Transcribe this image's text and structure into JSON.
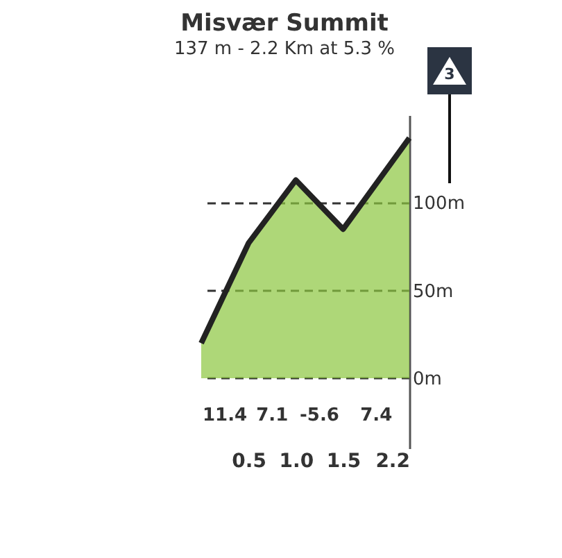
{
  "chart_data": {
    "type": "area",
    "title": "Misvær Summit",
    "subtitle": "137 m - 2.2 Km at 5.3 %",
    "x": [
      0,
      0.5,
      1.0,
      1.5,
      2.2
    ],
    "series": [
      {
        "color": "#8cc63f",
        "values": [
          20,
          77,
          113,
          85,
          137
        ]
      }
    ],
    "xlim": [
      0,
      2.2
    ],
    "xticks": [
      {
        "value": 0.5,
        "label": "0.5"
      },
      {
        "value": 1.0,
        "label": "1.0"
      },
      {
        "value": 1.5,
        "label": "1.5"
      },
      {
        "value": 2.2,
        "label": "2.2"
      }
    ],
    "ylim": [
      -40,
      150
    ],
    "yticks": [
      {
        "value": 0,
        "label": "0m"
      },
      {
        "value": 50,
        "label": "50m"
      },
      {
        "value": 100,
        "label": "100m"
      }
    ],
    "grid": true,
    "annotations": [
      "3",
      "11.4",
      "7.1",
      "-5.6",
      "7.4"
    ]
  }
}
